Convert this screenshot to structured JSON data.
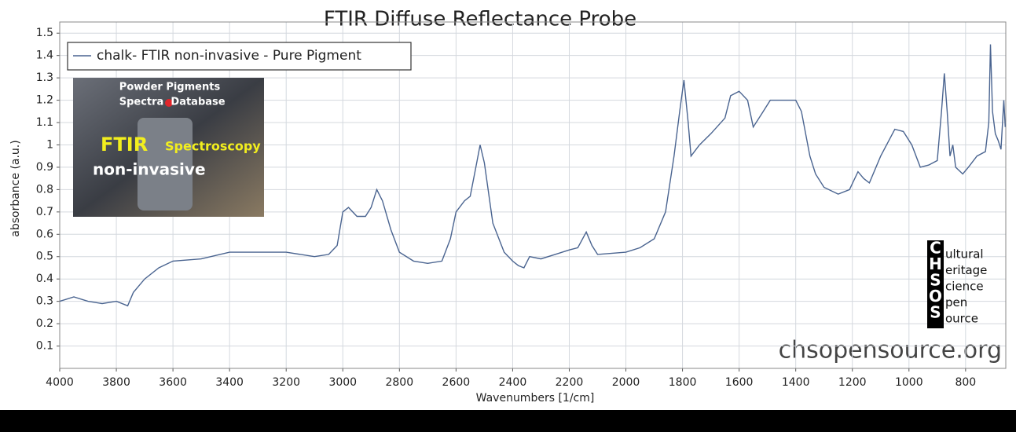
{
  "chart_data": {
    "type": "line",
    "title": "FTIR Diffuse Reflectance Probe",
    "x_label": "Wavenumbers [1/cm]",
    "y_label": "absorbance (a.u.)",
    "x": [
      4000,
      3950,
      3900,
      3850,
      3800,
      3760,
      3740,
      3700,
      3650,
      3600,
      3500,
      3400,
      3300,
      3200,
      3100,
      3050,
      3020,
      3000,
      2980,
      2950,
      2920,
      2900,
      2880,
      2860,
      2830,
      2800,
      2750,
      2700,
      2650,
      2620,
      2600,
      2570,
      2550,
      2530,
      2515,
      2500,
      2470,
      2430,
      2400,
      2380,
      2360,
      2340,
      2300,
      2250,
      2200,
      2170,
      2140,
      2120,
      2100,
      2000,
      1950,
      1900,
      1860,
      1830,
      1810,
      1795,
      1780,
      1770,
      1740,
      1700,
      1650,
      1630,
      1600,
      1570,
      1550,
      1520,
      1490,
      1450,
      1400,
      1380,
      1350,
      1330,
      1300,
      1250,
      1210,
      1180,
      1160,
      1140,
      1100,
      1050,
      1020,
      990,
      960,
      930,
      900,
      885,
      875,
      865,
      855,
      845,
      835,
      810,
      790,
      760,
      730,
      718,
      712,
      705,
      695,
      685,
      675,
      665,
      660
    ],
    "series": [
      {
        "name": "chalk- FTIR non-invasive - Pure Pigment",
        "color": "#4a6490",
        "values": [
          0.3,
          0.32,
          0.3,
          0.29,
          0.3,
          0.28,
          0.34,
          0.4,
          0.45,
          0.48,
          0.49,
          0.52,
          0.52,
          0.52,
          0.5,
          0.51,
          0.55,
          0.7,
          0.72,
          0.68,
          0.68,
          0.72,
          0.8,
          0.75,
          0.62,
          0.52,
          0.48,
          0.47,
          0.48,
          0.58,
          0.7,
          0.75,
          0.77,
          0.9,
          1.0,
          0.92,
          0.65,
          0.52,
          0.48,
          0.46,
          0.45,
          0.5,
          0.49,
          0.51,
          0.53,
          0.54,
          0.61,
          0.55,
          0.51,
          0.52,
          0.54,
          0.58,
          0.7,
          0.95,
          1.15,
          1.29,
          1.1,
          0.95,
          1.0,
          1.05,
          1.12,
          1.22,
          1.24,
          1.2,
          1.08,
          1.14,
          1.2,
          1.2,
          1.2,
          1.15,
          0.95,
          0.87,
          0.81,
          0.78,
          0.8,
          0.88,
          0.85,
          0.83,
          0.95,
          1.07,
          1.06,
          1.0,
          0.9,
          0.91,
          0.93,
          1.15,
          1.32,
          1.15,
          0.95,
          1.0,
          0.9,
          0.87,
          0.9,
          0.95,
          0.97,
          1.1,
          1.45,
          1.15,
          1.05,
          1.02,
          0.98,
          1.2,
          1.08
        ]
      }
    ],
    "xlim": [
      4000,
      658
    ],
    "ylim": [
      0,
      1.55
    ],
    "xticks": [
      4000,
      3800,
      3600,
      3400,
      3200,
      3000,
      2800,
      2600,
      2400,
      2200,
      2000,
      1800,
      1600,
      1400,
      1200,
      1000,
      800
    ],
    "yticks": [
      0.1,
      0.2,
      0.3,
      0.4,
      0.5,
      0.6,
      0.7,
      0.8,
      0.9,
      1,
      1.1,
      1.2,
      1.3,
      1.4,
      1.5
    ],
    "grid": true,
    "legend": "upper left"
  },
  "inset": {
    "lines": [
      "Powder Pigments",
      "Spectra",
      "Database",
      "FTIR",
      "Spectroscopy",
      "non-invasive"
    ]
  },
  "logo": {
    "letters": [
      "C",
      "H",
      "S",
      "O",
      "S"
    ],
    "words": [
      "ultural",
      "eritage",
      "cience",
      "pen",
      "ource"
    ]
  },
  "watermark": "chsopensource.org"
}
